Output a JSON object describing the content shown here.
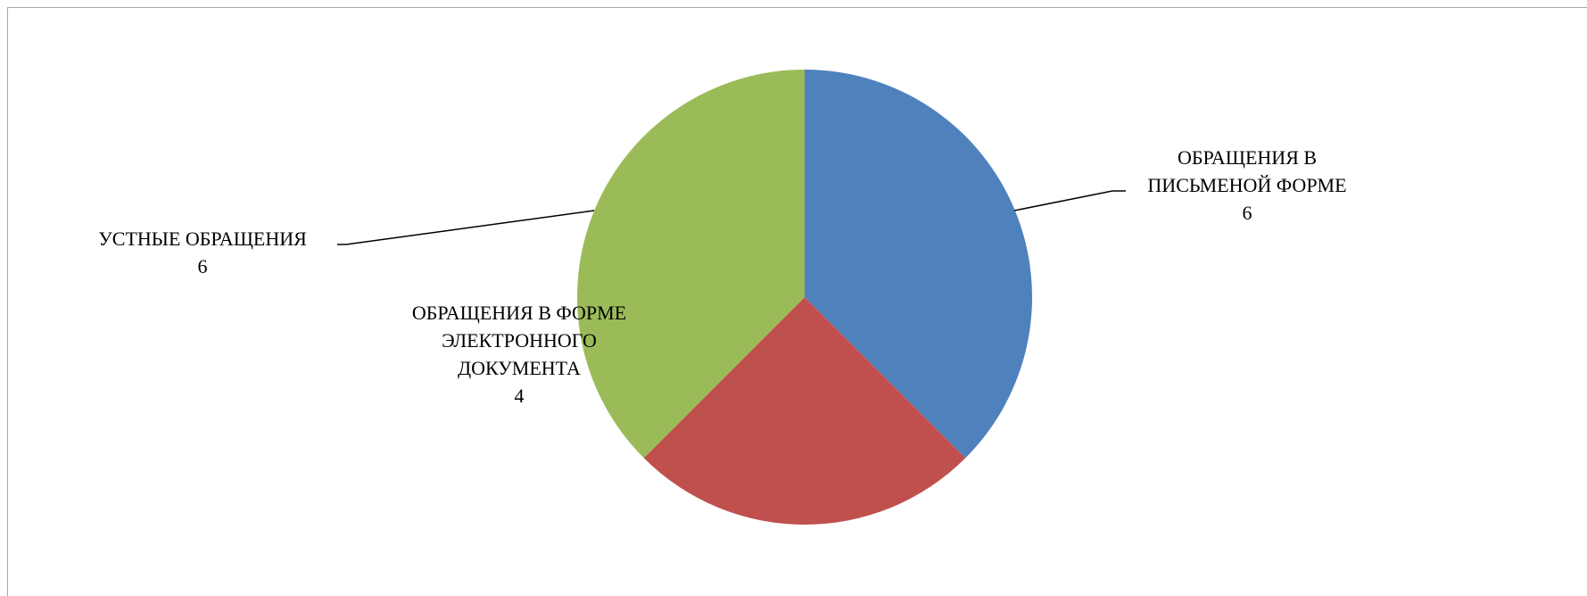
{
  "chart_data": {
    "type": "pie",
    "title": "",
    "categories": [
      "ОБРАЩЕНИЯ В ПИСЬМЕНОЙ ФОРМЕ",
      "ОБРАЩЕНИЯ В ФОРМЕ ЭЛЕКТРОННОГО ДОКУМЕНТА",
      "УСТНЫЕ ОБРАЩЕНИЯ"
    ],
    "values": [
      6,
      4,
      6
    ],
    "colors": [
      "#4f81bd",
      "#c0504d",
      "#9bbb59"
    ],
    "start_angle_deg": 0,
    "direction": "clockwise",
    "legend": "none",
    "labels": [
      {
        "lines": [
          "ОБРАЩЕНИЯ В",
          "ПИСЬМЕНОЙ ФОРМЕ"
        ],
        "value": "6"
      },
      {
        "lines": [
          "ОБРАЩЕНИЯ В ФОРМЕ",
          "ЭЛЕКТРОННОГО",
          "ДОКУМЕНТА"
        ],
        "value": "4"
      },
      {
        "lines": [
          "УСТНЫЕ ОБРАЩЕНИЯ"
        ],
        "value": "6"
      }
    ]
  }
}
